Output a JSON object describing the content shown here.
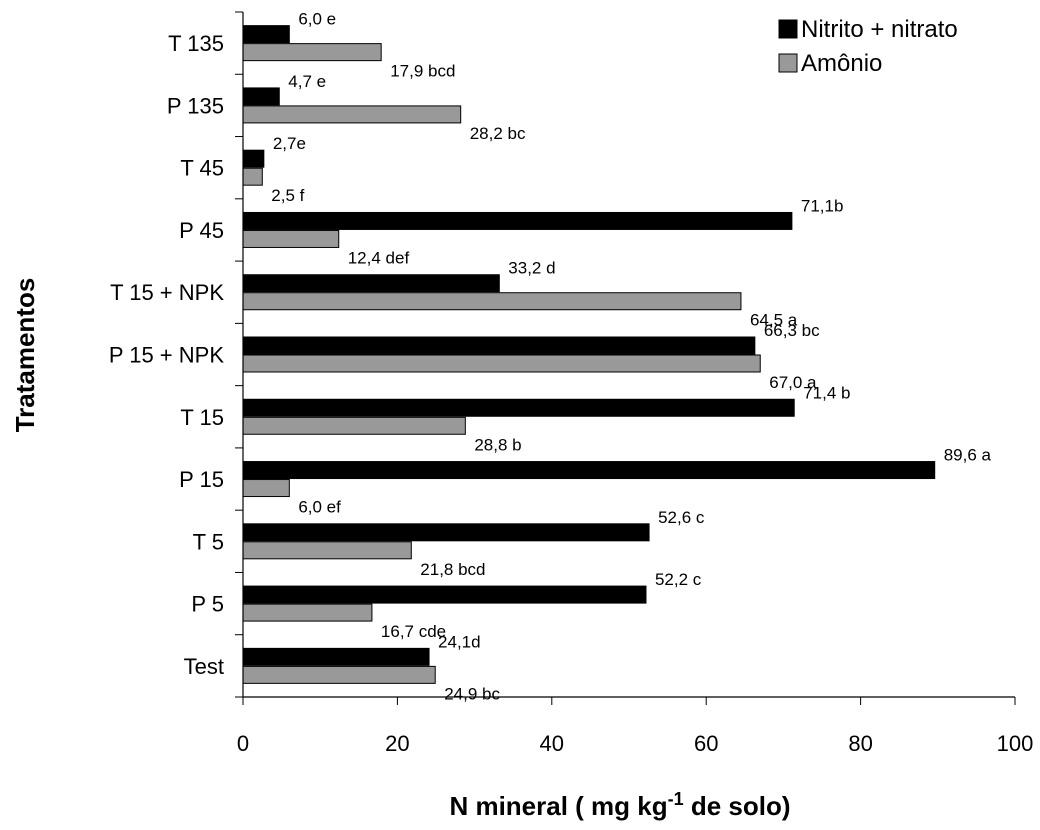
{
  "chart_data": {
    "type": "bar",
    "orientation": "horizontal",
    "categories": [
      "T 135",
      "P 135",
      "T 45",
      "P 45",
      "T  15 + NPK",
      "P 15 + NPK",
      "T 15",
      "P 15",
      "T 5",
      "P 5",
      "Test"
    ],
    "series": [
      {
        "name": "Nitrito + nitrato",
        "color": "#000000",
        "values": [
          6.0,
          4.7,
          2.7,
          71.1,
          33.2,
          66.3,
          71.4,
          89.6,
          52.6,
          52.2,
          24.1
        ],
        "labels": [
          "6,0 e",
          "4,7 e",
          "2,7e",
          "71,1b",
          "33,2 d",
          "66,3 bc",
          "71,4 b",
          "89,6 a",
          "52,6 c",
          "52,2 c",
          "24,1d"
        ]
      },
      {
        "name": "Amônio",
        "color": "#999999",
        "values": [
          17.9,
          28.2,
          2.5,
          12.4,
          64.5,
          67.0,
          28.8,
          6.0,
          21.8,
          16.7,
          24.9
        ],
        "labels": [
          "17,9 bcd",
          "28,2 bc",
          "2,5 f",
          "12,4 def",
          "64,5 a",
          "67,0 a",
          "28,8 b",
          "6,0 ef",
          "21,8 bcd",
          "16,7 cde",
          "24,9 bc"
        ]
      }
    ],
    "xlabel": {
      "main": "N  mineral ( mg kg",
      "sup": "-1",
      "rest": " de solo)"
    },
    "ylabel": "Tratamentos",
    "xlim": [
      0,
      100
    ],
    "xticks": [
      0,
      20,
      40,
      60,
      80,
      100
    ],
    "grid": false,
    "legend_position": "top-right"
  }
}
